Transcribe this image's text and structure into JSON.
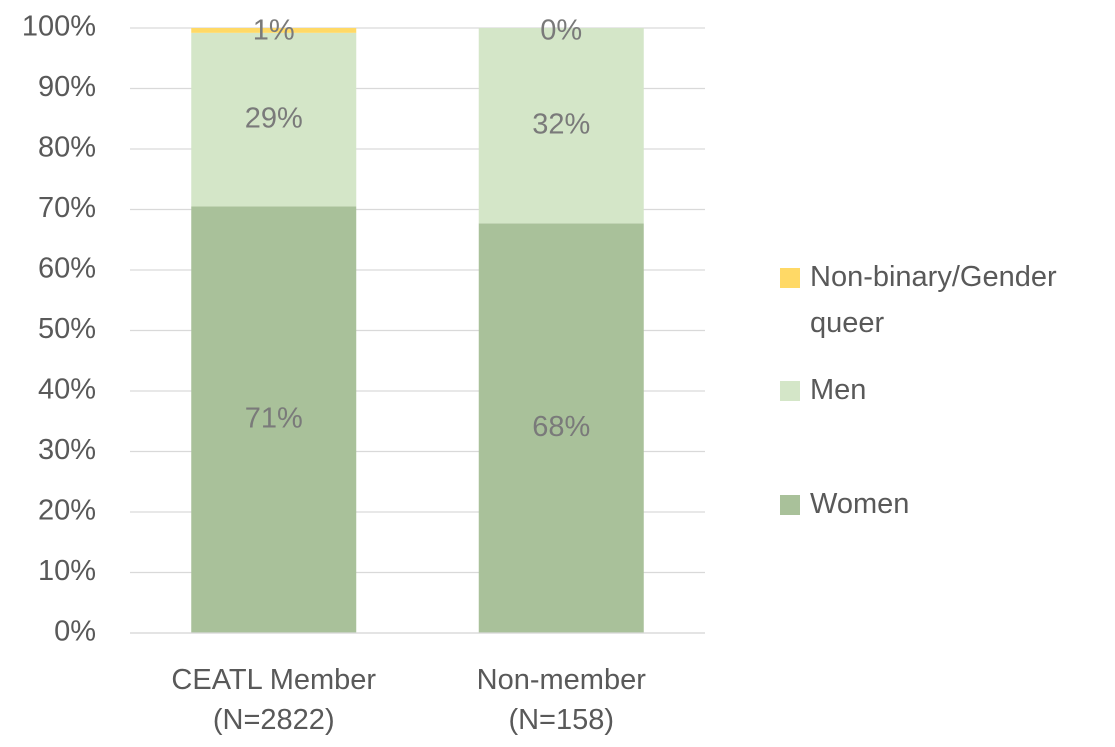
{
  "chart_data": {
    "type": "stacked_bar",
    "categories": [
      "CEATL Member (N=2822)",
      "Non-member (N=158)"
    ],
    "series": [
      {
        "name": "Women",
        "color": "#a9c19a",
        "values": [
          70.5,
          67.7
        ],
        "value_labels": [
          "71%",
          "68%"
        ]
      },
      {
        "name": "Men",
        "color": "#d4e6c8",
        "values": [
          28.7,
          32.3
        ],
        "value_labels": [
          "29%",
          "32%"
        ]
      },
      {
        "name": "Non-binary/Gender queer",
        "color": "#ffd966",
        "values": [
          0.8,
          0
        ],
        "value_labels": [
          "1%",
          "0%"
        ]
      }
    ],
    "ylim": [
      0,
      100
    ],
    "yticks": [
      {
        "value": 0,
        "label": "0%"
      },
      {
        "value": 10,
        "label": "10%"
      },
      {
        "value": 20,
        "label": "20%"
      },
      {
        "value": 30,
        "label": "30%"
      },
      {
        "value": 40,
        "label": "40%"
      },
      {
        "value": 50,
        "label": "50%"
      },
      {
        "value": 60,
        "label": "60%"
      },
      {
        "value": 70,
        "label": "70%"
      },
      {
        "value": 80,
        "label": "80%"
      },
      {
        "value": 90,
        "label": "90%"
      },
      {
        "value": 100,
        "label": "100%"
      }
    ],
    "grid": true,
    "legend": "right"
  }
}
